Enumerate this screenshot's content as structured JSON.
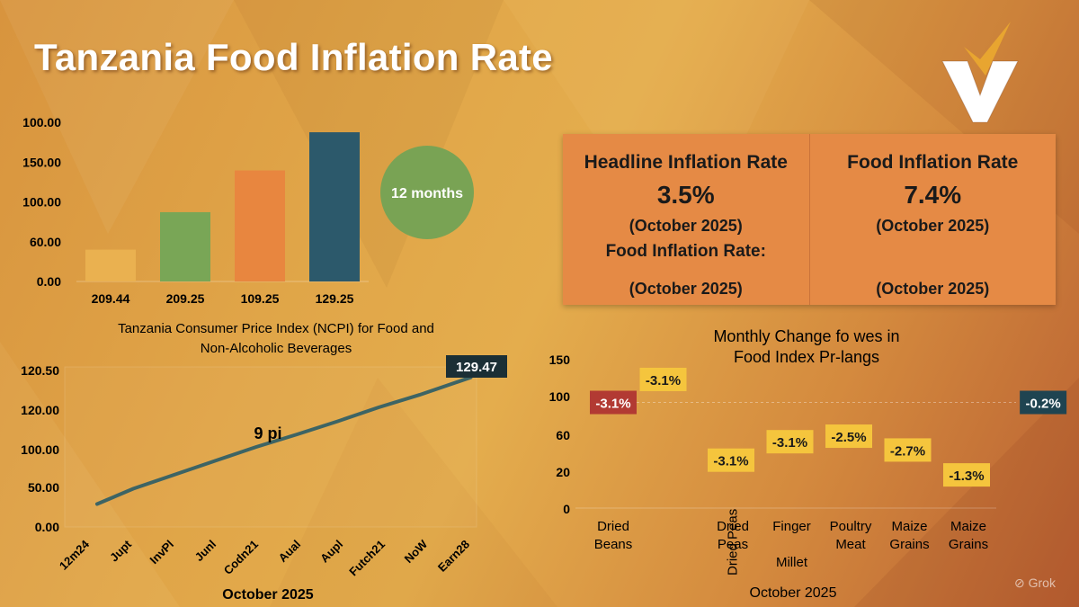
{
  "title": "Tanzania Food Inflation Rate",
  "logo": {
    "icon": "checkmark-v-logo-icon"
  },
  "badge": {
    "label": "12 months"
  },
  "stats": [
    {
      "title": "Headline Inflation Rate",
      "value": "3.5%",
      "period": "(October 2025)",
      "extra": "Food Inflation Rate:",
      "period2": "(October 2025)"
    },
    {
      "title": "Food Inflation Rate",
      "value": "7.4%",
      "period": "(October 2025)",
      "extra": "",
      "period2": "(October 2025)"
    }
  ],
  "watermark": {
    "icon": "grok-icon",
    "label": "Grok"
  },
  "chart_data": [
    {
      "type": "bar",
      "title": "Tanzania Consumer Price Index (NCPI) for Food and Non-Alcoholic Beverages",
      "title_lines": [
        "Tanzania Consumer Price Index (NCPI) for Food and",
        "Non-Alcoholic Beverages"
      ],
      "categories": [
        "209.44",
        "209.25",
        "109.25",
        "129.25"
      ],
      "values": [
        45,
        98,
        157,
        211
      ],
      "colors": [
        "#eab150",
        "#79a656",
        "#e8863f",
        "#2c596b"
      ],
      "yticks": [
        "100.00",
        "150.00",
        "100.00",
        "60.00",
        "0.00"
      ],
      "ylim": [
        0,
        220
      ],
      "xlabel": "",
      "ylabel": ""
    },
    {
      "type": "line",
      "xlabel": "October 2025",
      "annotation": "9 pi",
      "end_label": "129.47",
      "categories": [
        "12m24",
        "Jupt",
        "InvPl",
        "Junl",
        "Codn21",
        "Aual",
        "Aupl",
        "Futch21",
        "NoW",
        "Earn28"
      ],
      "x": [
        0.12,
        1.0,
        2.0,
        3.0,
        4.0,
        5.0,
        6.0,
        7.0,
        8.0,
        9.25
      ],
      "values": [
        18,
        40,
        60,
        80,
        100,
        118,
        137,
        157,
        175,
        200
      ],
      "yticks": [
        "120.50",
        "120.00",
        "100.00",
        "50.00",
        "0.00"
      ],
      "ylim": [
        0,
        225
      ],
      "color": "#3d6464"
    },
    {
      "type": "scatter",
      "title_lines": [
        "Monthly Change fo wes in",
        "Food Index Pr-langs"
      ],
      "xlabel": "October 2025",
      "categories": [
        {
          "lines": [
            "Dried",
            "Beans"
          ],
          "rotated": false
        },
        {
          "lines": [
            "Dried Peas"
          ],
          "rotated": true
        },
        {
          "lines": [
            "Dried",
            "Peas"
          ],
          "rotated": false
        },
        {
          "lines": [
            "Finger",
            "",
            "Millet"
          ],
          "rotated": false
        },
        {
          "lines": [
            "Poultry",
            "Meat"
          ],
          "rotated": false
        },
        {
          "lines": [
            "Maize",
            "Grains"
          ],
          "rotated": false
        },
        {
          "lines": [
            "Maize",
            "Grains"
          ],
          "rotated": false
        }
      ],
      "points": [
        {
          "label": "-3.1%",
          "x": 0.0,
          "y": 93,
          "style": "red"
        },
        {
          "label": "-3.1%",
          "x": 1.0,
          "y": 122,
          "style": "yellow"
        },
        {
          "label": "-3.1%",
          "x": 2.0,
          "y": 32,
          "style": "yellow"
        },
        {
          "label": "-3.1%",
          "x": 3.0,
          "y": 52,
          "style": "yellow"
        },
        {
          "label": "-2.5%",
          "x": 4.0,
          "y": 58,
          "style": "yellow"
        },
        {
          "label": "-2.7%",
          "x": 5.0,
          "y": 43,
          "style": "yellow"
        },
        {
          "label": "-1.3%",
          "x": 6.0,
          "y": 18,
          "style": "yellow"
        },
        {
          "label": "-0.2%",
          "x": 7.3,
          "y": 93,
          "style": "navy"
        }
      ],
      "reference_line": 93,
      "ytick_values": [
        0,
        20,
        60,
        100,
        150
      ],
      "yticks": [
        "0",
        "20",
        "60",
        "100",
        "150"
      ],
      "ylim": [
        0,
        150
      ],
      "box_colors": {
        "red": "#b23a33",
        "yellow": "#f5c53d",
        "navy": "#1f4451"
      }
    }
  ]
}
